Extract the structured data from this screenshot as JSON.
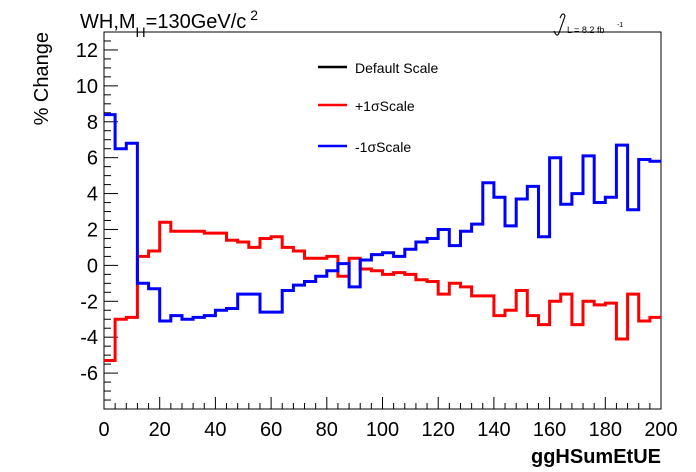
{
  "chart_data": {
    "type": "line",
    "title_parts": {
      "prefix": "WH,M",
      "sub": "H",
      "mid": "=130GeV/c",
      "sup": "2"
    },
    "lumi_label": "L = 8.2 fb",
    "lumi_exp": "-1",
    "xlabel": "ggHSumEtUE",
    "ylabel": "% Change",
    "xlim": [
      0,
      200
    ],
    "ylim": [
      -8,
      13
    ],
    "x_ticks": [
      "0",
      "20",
      "40",
      "60",
      "80",
      "100",
      "120",
      "140",
      "160",
      "180",
      "200"
    ],
    "y_ticks": [
      "-6",
      "-4",
      "-2",
      "0",
      "2",
      "4",
      "6",
      "8",
      "10",
      "12"
    ],
    "bin_edges": [
      0,
      4,
      8,
      12,
      16,
      20,
      24,
      28,
      32,
      36,
      40,
      44,
      48,
      52,
      56,
      60,
      64,
      68,
      72,
      76,
      80,
      84,
      88,
      92,
      96,
      100,
      104,
      108,
      112,
      116,
      120,
      124,
      128,
      132,
      136,
      140,
      144,
      148,
      152,
      156,
      160,
      164,
      168,
      172,
      176,
      180,
      184,
      188,
      192,
      196,
      200
    ],
    "legend_position": "top-center",
    "series": [
      {
        "name": "Default Scale",
        "color": "#000000",
        "values": []
      },
      {
        "name": "+1σScale",
        "color": "#ff0000",
        "values": [
          -5.3,
          -3.0,
          -2.9,
          0.5,
          0.8,
          2.4,
          1.9,
          1.9,
          1.9,
          1.8,
          1.8,
          1.4,
          1.3,
          1.0,
          1.5,
          1.6,
          1.0,
          0.8,
          0.4,
          0.4,
          0.5,
          -0.6,
          0.4,
          -0.2,
          -0.3,
          -0.5,
          -0.4,
          -0.5,
          -0.8,
          -0.9,
          -1.6,
          -1.0,
          -1.2,
          -1.7,
          -1.7,
          -2.8,
          -2.5,
          -1.4,
          -2.8,
          -3.3,
          -2.0,
          -1.6,
          -3.3,
          -2.0,
          -2.2,
          -2.1,
          -4.1,
          -1.6,
          -3.1,
          -2.9
        ]
      },
      {
        "name": "-1σScale",
        "color": "#0000ff",
        "values": [
          8.4,
          6.5,
          6.8,
          -1.0,
          -1.3,
          -3.1,
          -2.8,
          -3.0,
          -2.9,
          -2.8,
          -2.5,
          -2.4,
          -1.6,
          -1.6,
          -2.6,
          -2.6,
          -1.4,
          -1.1,
          -0.9,
          -0.6,
          -0.3,
          0.1,
          -1.2,
          0.3,
          0.6,
          0.7,
          0.5,
          0.9,
          1.3,
          1.5,
          2.0,
          1.1,
          1.9,
          2.3,
          4.6,
          3.8,
          2.2,
          3.7,
          4.4,
          1.6,
          6.0,
          3.4,
          4.0,
          6.1,
          3.5,
          3.8,
          6.7,
          3.1,
          5.9,
          5.8
        ]
      }
    ]
  }
}
